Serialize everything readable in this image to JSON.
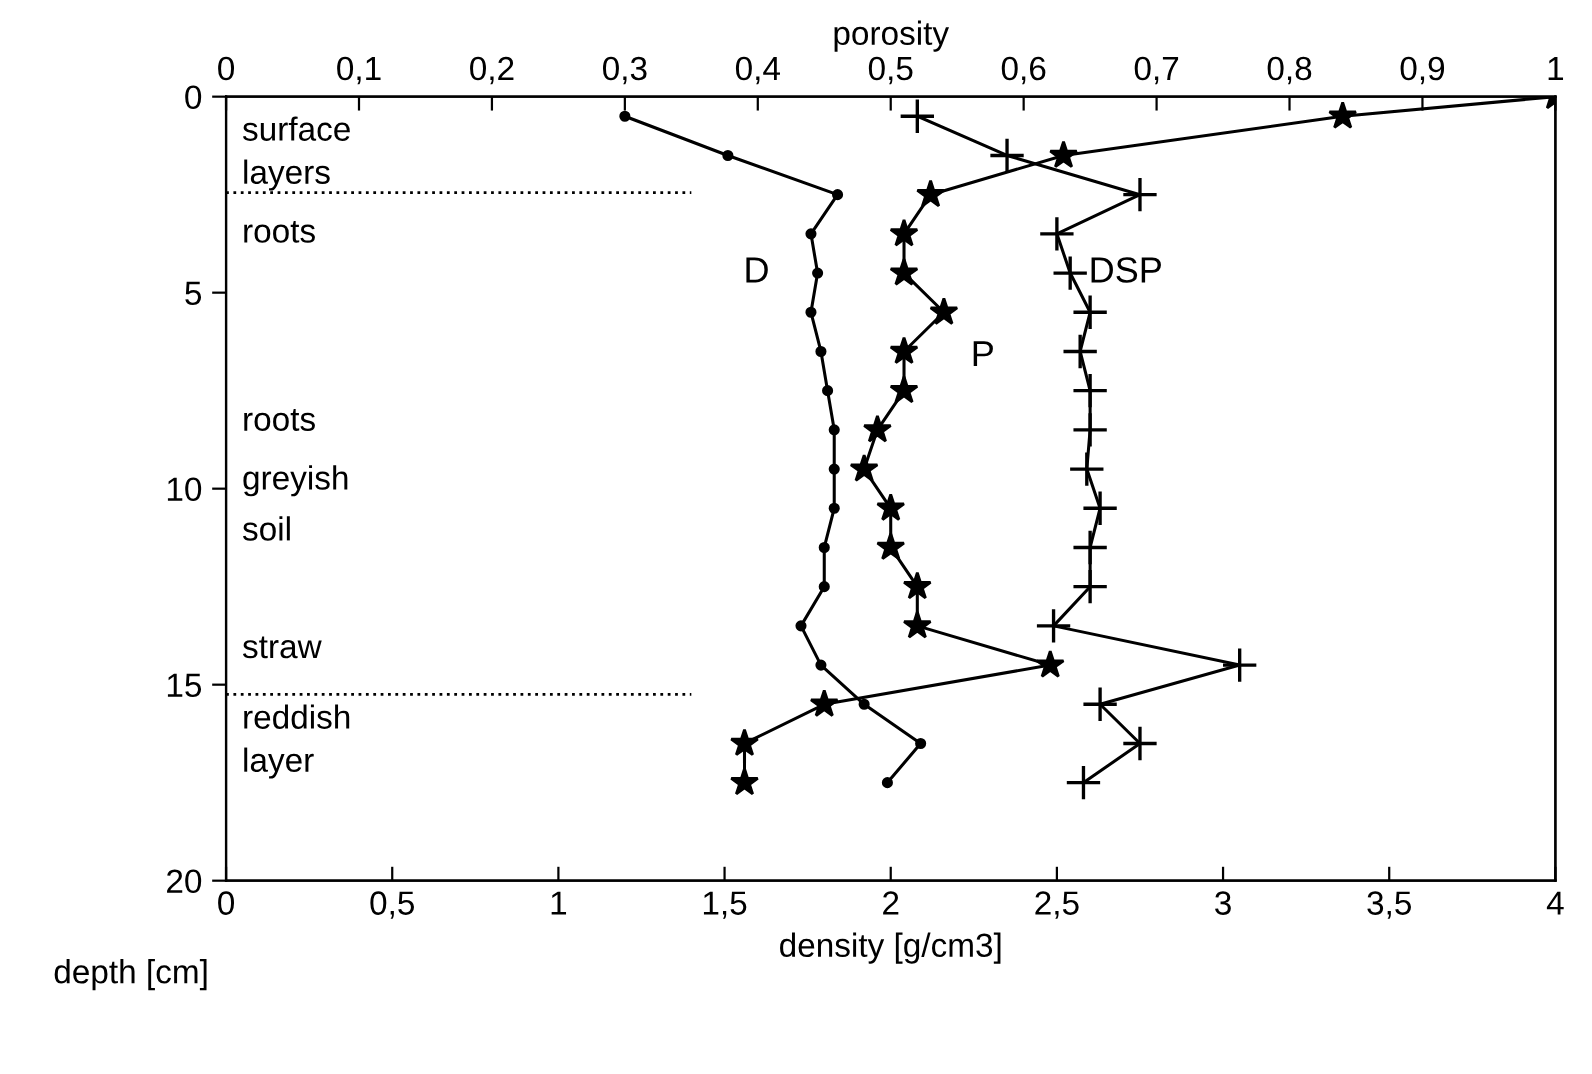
{
  "chart_data": {
    "type": "line",
    "xlabel": "density [g/cm3]",
    "x2label": "porosity",
    "ylabel": "depth [cm]",
    "xlim": [
      0,
      4
    ],
    "xticks": [
      0,
      {
        "value": 0.5,
        "label": "0,5"
      },
      1,
      {
        "value": 1.5,
        "label": "1,5"
      },
      2,
      {
        "value": 2.5,
        "label": "2,5"
      },
      3,
      {
        "value": 3.5,
        "label": "3,5"
      },
      4
    ],
    "x2lim": [
      0,
      1
    ],
    "x2ticks": [
      0,
      {
        "value": 0.1,
        "label": "0,1"
      },
      {
        "value": 0.2,
        "label": "0,2"
      },
      {
        "value": 0.3,
        "label": "0,3"
      },
      {
        "value": 0.4,
        "label": "0,4"
      },
      {
        "value": 0.5,
        "label": "0,5"
      },
      {
        "value": 0.6,
        "label": "0,6"
      },
      {
        "value": 0.7,
        "label": "0,7"
      },
      {
        "value": 0.8,
        "label": "0,8"
      },
      {
        "value": 0.9,
        "label": "0,9"
      },
      1
    ],
    "ylim": [
      20,
      0
    ],
    "yticks": [
      0,
      5,
      10,
      15,
      20
    ],
    "grid": false,
    "line_style": "solid",
    "series": [
      {
        "name": "D",
        "color": "#000000",
        "marker": "circle",
        "x": [
          1.2,
          1.51,
          1.84,
          1.76,
          1.78,
          1.76,
          1.79,
          1.81,
          1.83,
          1.83,
          1.83,
          1.8,
          1.8,
          1.73,
          1.79,
          1.92,
          2.09,
          1.99
        ],
        "values": [
          0.5,
          1.5,
          2.5,
          3.5,
          4.5,
          5.5,
          6.5,
          7.5,
          8.5,
          9.5,
          10.5,
          11.5,
          12.5,
          13.5,
          14.5,
          15.5,
          16.5,
          17.5
        ]
      },
      {
        "name": "P",
        "color": "#000000",
        "marker": "star",
        "axis": "x2",
        "x": [
          1.0,
          0.84,
          0.63,
          0.53,
          0.51,
          0.51,
          0.54,
          0.51,
          0.51,
          0.49,
          0.48,
          0.5,
          0.5,
          0.52,
          0.52,
          0.62,
          0.45,
          0.39,
          0.39
        ],
        "values": [
          0,
          0.5,
          1.5,
          2.5,
          3.5,
          4.5,
          5.5,
          6.5,
          7.5,
          8.5,
          9.5,
          10.5,
          11.5,
          12.5,
          13.5,
          14.5,
          15.5,
          16.5,
          17.5
        ]
      },
      {
        "name": "DSP",
        "color": "#000000",
        "marker": "cross",
        "x": [
          2.08,
          2.35,
          2.75,
          2.5,
          2.54,
          2.6,
          2.57,
          2.6,
          2.6,
          2.59,
          2.63,
          2.6,
          2.6,
          2.49,
          3.05,
          2.63,
          2.75,
          2.58
        ],
        "values": [
          0.5,
          1.5,
          2.5,
          3.5,
          4.5,
          5.5,
          6.5,
          7.5,
          8.5,
          9.5,
          10.5,
          11.5,
          12.5,
          13.5,
          14.5,
          15.5,
          16.5,
          17.5
        ]
      }
    ],
    "ref_lines": [
      {
        "axis": "y",
        "value": 2.45,
        "line_style": "dotted",
        "color": "#000000"
      },
      {
        "axis": "y",
        "value": 15.25,
        "line_style": "dotted",
        "color": "#000000"
      }
    ],
    "annotations": [
      "surface",
      "layers",
      "roots",
      "roots",
      "greyish",
      "soil",
      "straw",
      "reddish",
      "layer"
    ]
  }
}
